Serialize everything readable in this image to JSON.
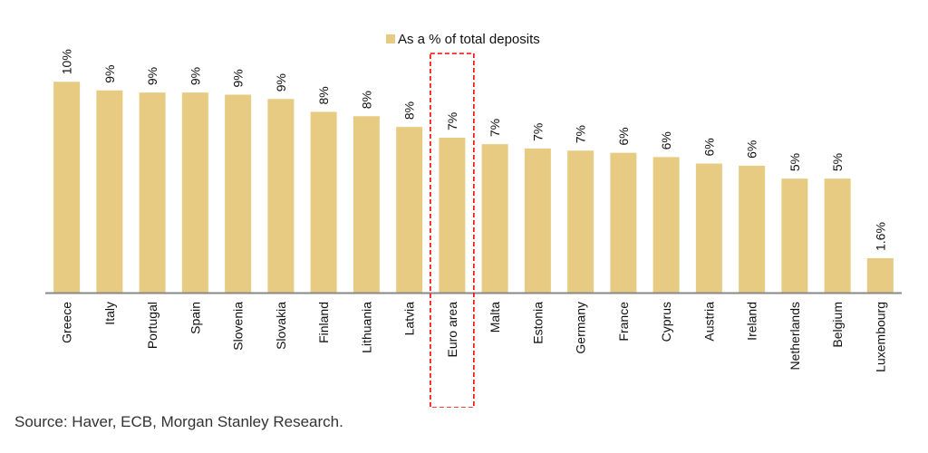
{
  "chart_data": {
    "type": "bar",
    "legend": {
      "label": "As a % of total deposits",
      "placement": "top-center"
    },
    "categories": [
      "Greece",
      "Italy",
      "Portugal",
      "Spain",
      "Slovenia",
      "Slovakia",
      "Finland",
      "Lithuania",
      "Latvia",
      "Euro area",
      "Malta",
      "Estonia",
      "Germany",
      "France",
      "Cyprus",
      "Austria",
      "Ireland",
      "Netherlands",
      "Belgium",
      "Luxembourg"
    ],
    "series": [
      {
        "name": "As a % of total deposits",
        "values": [
          9.8,
          9.4,
          9.3,
          9.3,
          9.2,
          9.0,
          8.4,
          8.2,
          7.7,
          7.2,
          6.9,
          6.7,
          6.6,
          6.5,
          6.3,
          6.0,
          5.9,
          5.3,
          5.3,
          1.6
        ],
        "data_labels": [
          "10%",
          "9%",
          "9%",
          "9%",
          "9%",
          "9%",
          "8%",
          "8%",
          "8%",
          "7%",
          "7%",
          "7%",
          "7%",
          "6%",
          "6%",
          "6%",
          "6%",
          "5%",
          "5%",
          "1.6%"
        ]
      }
    ],
    "highlighted_category": "Euro area",
    "ylim": [
      0,
      10
    ],
    "grid": false,
    "colors": {
      "bar": "#E8CB82",
      "highlight_box": "#FF0000",
      "axis": "#888888"
    }
  },
  "source": "Source: Haver, ECB, Morgan Stanley Research."
}
